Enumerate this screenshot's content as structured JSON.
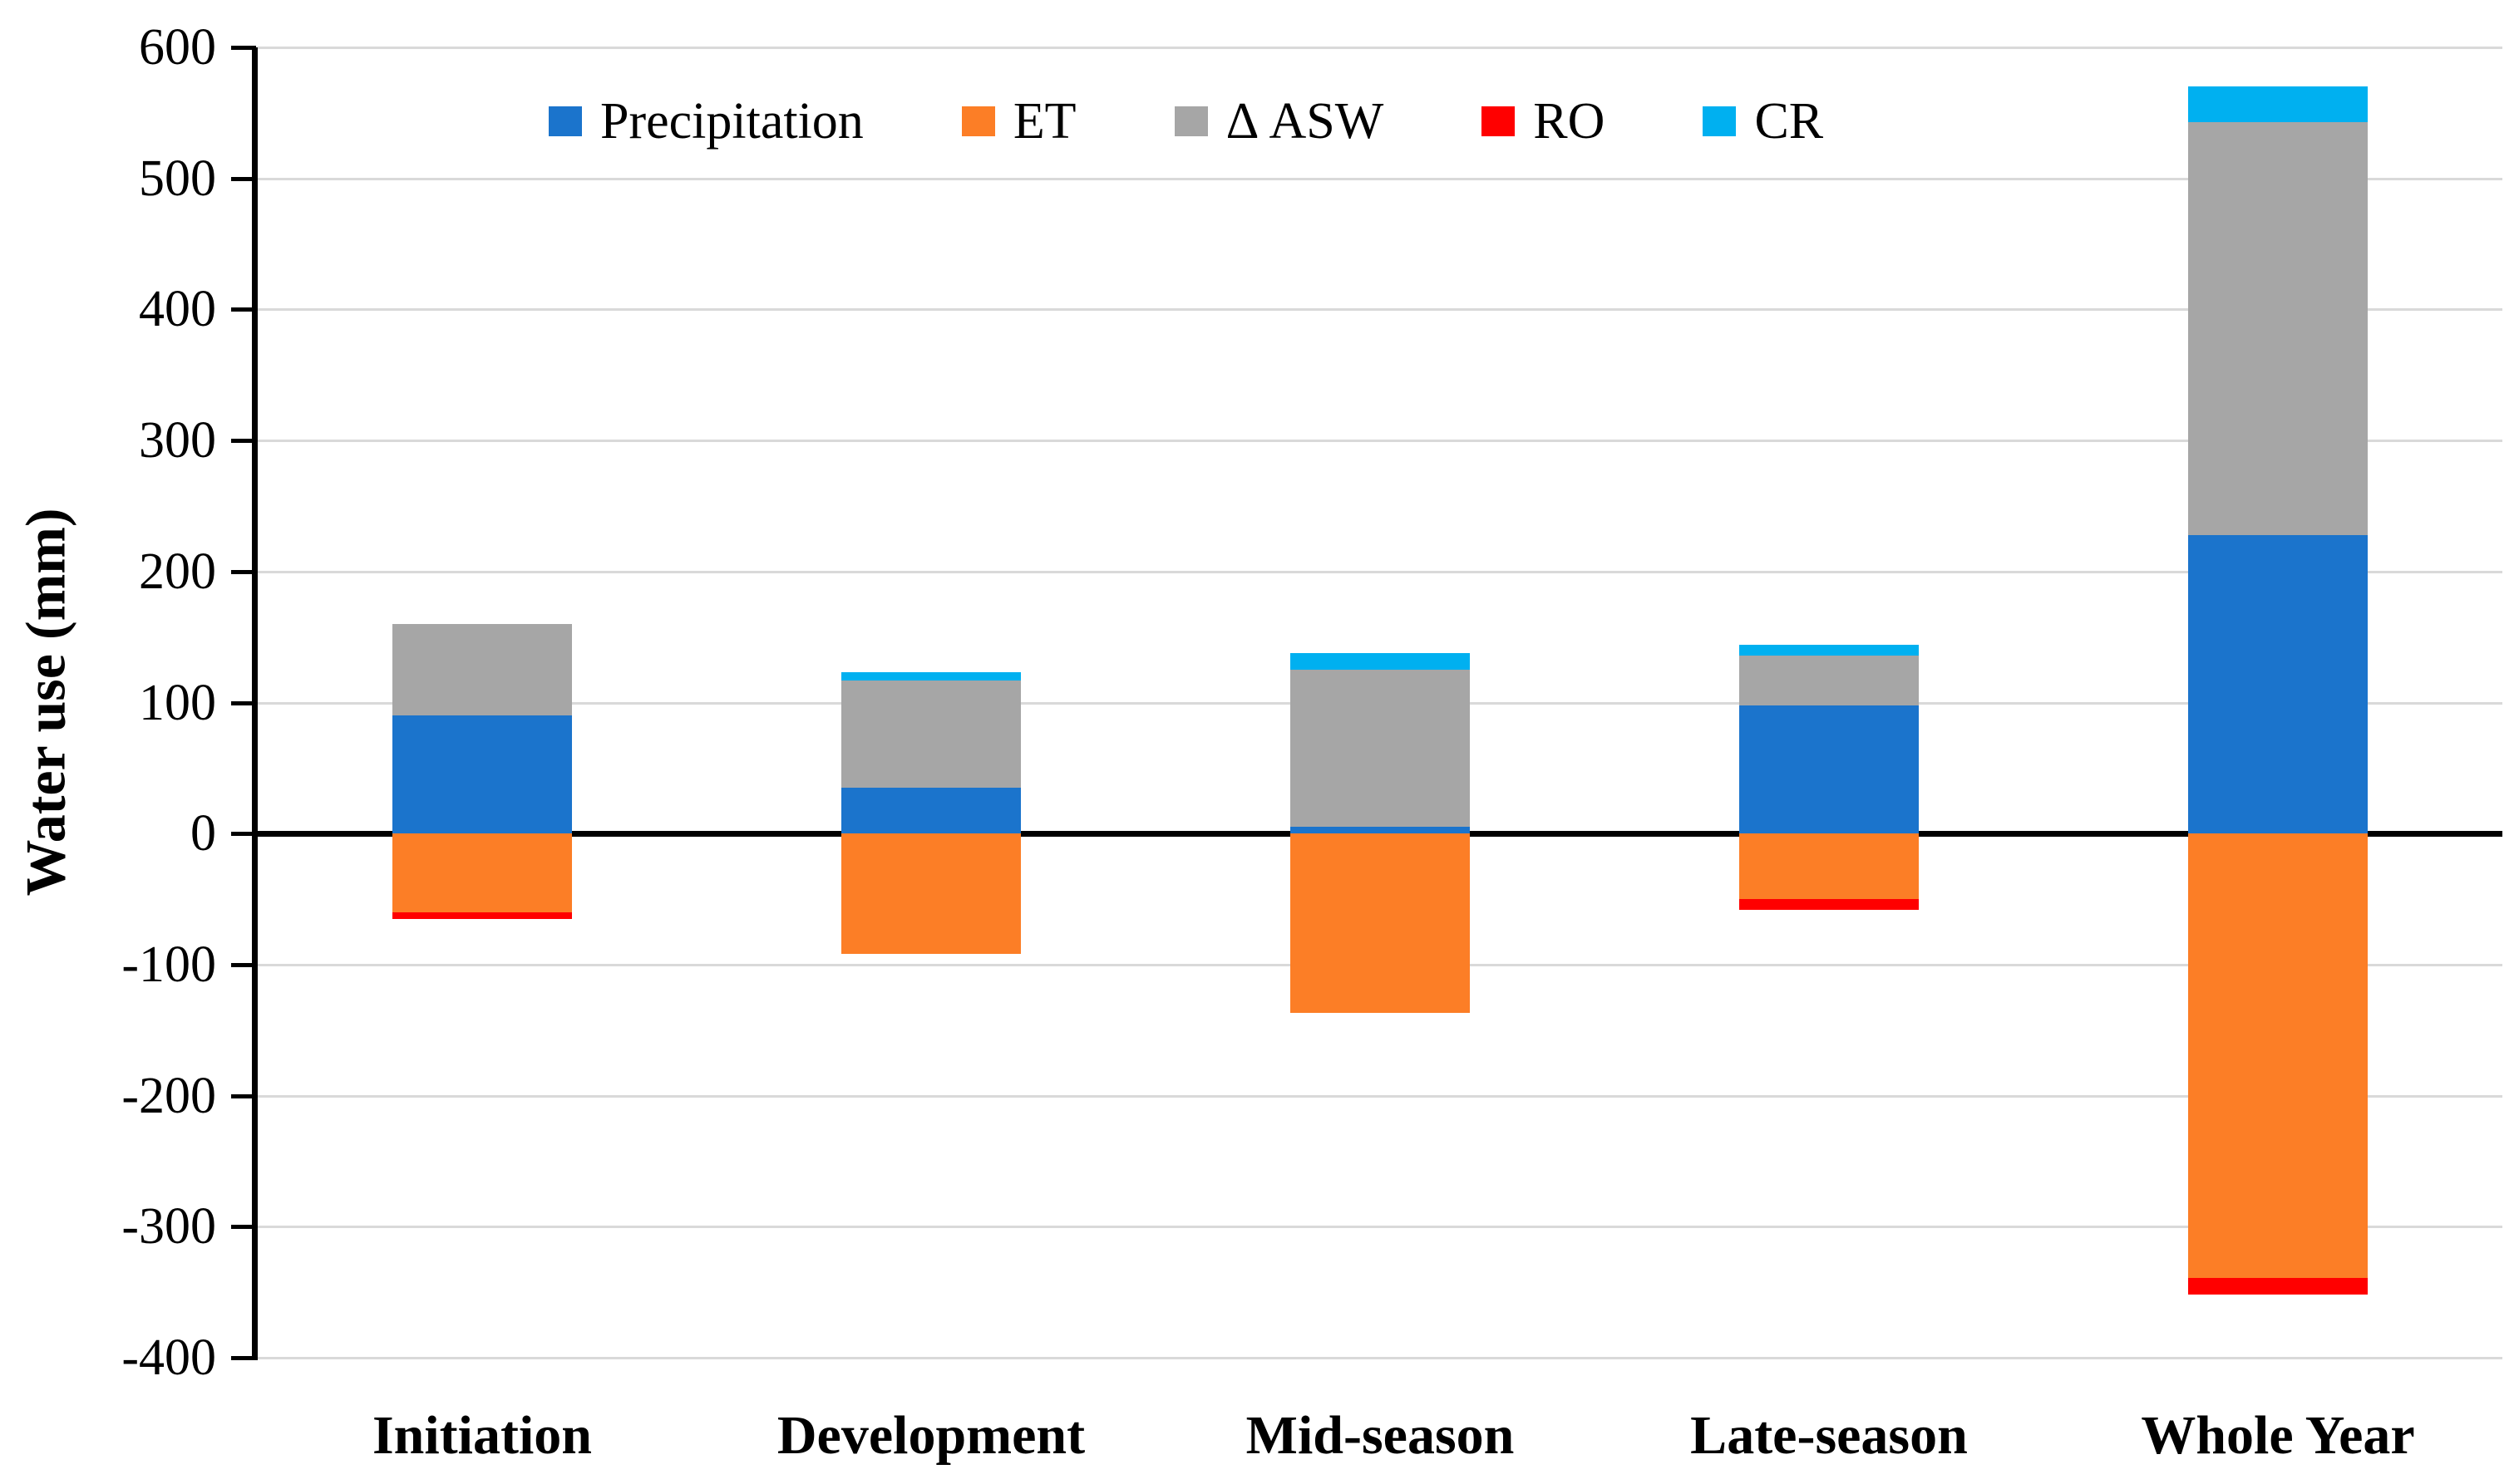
{
  "chart_data": {
    "type": "bar",
    "stacked": true,
    "title": "",
    "xlabel": "",
    "ylabel": "Water use (mm)",
    "ylim": [
      -400,
      600
    ],
    "ytick_step": 100,
    "grid": "horizontal-gridlines",
    "legend_position": "top-inside",
    "categories": [
      "Initiation",
      "Development",
      "Mid-season",
      "Late-season",
      "Whole Year"
    ],
    "series": [
      {
        "name": "Precipitation",
        "color": "#1B74CC",
        "values": [
          90,
          35,
          5,
          98,
          228
        ]
      },
      {
        "name": "ET",
        "color": "#FC7E26",
        "values": [
          -60,
          -92,
          -137,
          -50,
          -339
        ]
      },
      {
        "name": "Δ ASW",
        "color": "#A6A6A6",
        "values": [
          70,
          82,
          120,
          38,
          315
        ]
      },
      {
        "name": "RO",
        "color": "#FF0000",
        "values": [
          -5,
          0,
          0,
          -8,
          -13
        ]
      },
      {
        "name": "CR",
        "color": "#00B0F0",
        "values": [
          0,
          6,
          13,
          8,
          27
        ]
      }
    ]
  },
  "axis_style": {
    "gridline_color": "#D9D9D9",
    "axis_color": "#000000",
    "background": "#FFFFFF"
  }
}
